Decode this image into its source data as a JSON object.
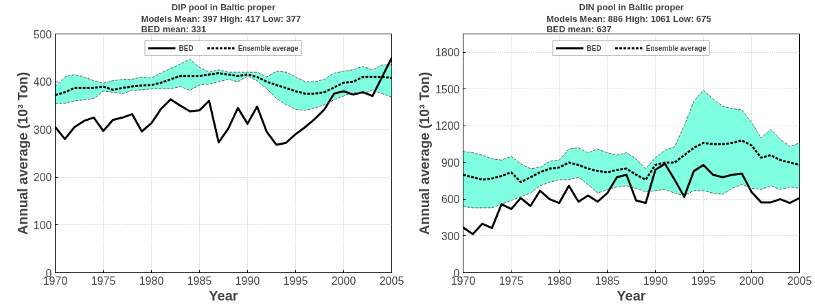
{
  "chart_data": [
    {
      "type": "line",
      "title": "DIP pool in Baltic proper",
      "subtitle": "Models Mean: 397  High: 417  Low: 377\nBED mean: 331",
      "xlabel": "Year",
      "ylabel": "Annual average (10³ Ton)",
      "x": [
        1970,
        1971,
        1972,
        1973,
        1974,
        1975,
        1976,
        1977,
        1978,
        1979,
        1980,
        1981,
        1982,
        1983,
        1984,
        1985,
        1986,
        1987,
        1988,
        1989,
        1990,
        1991,
        1992,
        1993,
        1994,
        1995,
        1996,
        1997,
        1998,
        1999,
        2000,
        2001,
        2002,
        2003,
        2004,
        2005
      ],
      "series": [
        {
          "name": "BED",
          "color": "#000000",
          "line_style": "solid",
          "values": [
            305,
            280,
            305,
            318,
            325,
            297,
            320,
            325,
            332,
            296,
            313,
            343,
            363,
            350,
            338,
            340,
            360,
            273,
            302,
            345,
            312,
            348,
            295,
            268,
            272,
            290,
            305,
            322,
            342,
            375,
            380,
            373,
            378,
            370,
            410,
            450
          ]
        },
        {
          "name": "Ensemble average",
          "color": "#000000",
          "line_style": "dashed",
          "values": [
            372,
            378,
            387,
            387,
            387,
            390,
            383,
            387,
            390,
            392,
            393,
            398,
            405,
            412,
            412,
            412,
            415,
            418,
            415,
            412,
            415,
            410,
            400,
            393,
            387,
            380,
            375,
            375,
            378,
            388,
            398,
            400,
            410,
            410,
            410,
            408
          ],
          "upper": [
            390,
            410,
            415,
            410,
            402,
            397,
            402,
            405,
            405,
            410,
            408,
            418,
            428,
            437,
            447,
            430,
            420,
            425,
            420,
            420,
            420,
            420,
            410,
            422,
            420,
            410,
            400,
            400,
            405,
            418,
            422,
            425,
            432,
            425,
            435,
            435
          ],
          "lower": [
            355,
            355,
            360,
            362,
            365,
            380,
            378,
            375,
            382,
            383,
            385,
            385,
            385,
            390,
            382,
            393,
            395,
            400,
            405,
            400,
            412,
            402,
            385,
            365,
            352,
            342,
            340,
            345,
            352,
            362,
            370,
            378,
            375,
            382,
            375,
            368
          ]
        },
        {
          "color": "#555555",
          "line_style": "dashed",
          "values": [
            390,
            410,
            415,
            410,
            402,
            397,
            402,
            405,
            405,
            410,
            408,
            418,
            428,
            437,
            447,
            430,
            420,
            425,
            420,
            420,
            420,
            420,
            410,
            422,
            420,
            410,
            400,
            400,
            405,
            418,
            422,
            425,
            432,
            425,
            435,
            435
          ]
        },
        {
          "color": "#555555",
          "line_style": "dashed",
          "values": [
            355,
            355,
            360,
            362,
            365,
            380,
            378,
            375,
            382,
            383,
            385,
            385,
            385,
            390,
            382,
            393,
            395,
            400,
            405,
            400,
            412,
            402,
            385,
            365,
            352,
            342,
            340,
            345,
            352,
            362,
            370,
            378,
            375,
            382,
            375,
            368
          ]
        }
      ],
      "xlim": [
        1970,
        2005
      ],
      "xticks": [
        1970,
        1975,
        1980,
        1985,
        1990,
        1995,
        2000,
        2005
      ],
      "ylim": [
        0,
        500
      ],
      "yticks": [
        0,
        100,
        200,
        300,
        400,
        500
      ],
      "grid": true,
      "legend": "top"
    },
    {
      "type": "line",
      "title": "DIN pool in Baltic proper",
      "subtitle": "Models Mean: 886  High: 1061  Low: 675\nBED mean: 637",
      "xlabel": "Year",
      "ylabel": "Annual average (10³ Ton)",
      "x": [
        1970,
        1971,
        1972,
        1973,
        1974,
        1975,
        1976,
        1977,
        1978,
        1979,
        1980,
        1981,
        1982,
        1983,
        1984,
        1985,
        1986,
        1987,
        1988,
        1989,
        1990,
        1991,
        1992,
        1993,
        1994,
        1995,
        1996,
        1997,
        1998,
        1999,
        2000,
        2001,
        2002,
        2003,
        2004,
        2005
      ],
      "series": [
        {
          "name": "BED",
          "color": "#000000",
          "line_style": "solid",
          "values": [
            370,
            315,
            400,
            365,
            560,
            520,
            610,
            545,
            670,
            600,
            570,
            710,
            580,
            630,
            580,
            650,
            780,
            800,
            590,
            570,
            840,
            890,
            760,
            620,
            830,
            880,
            800,
            780,
            800,
            810,
            660,
            575,
            575,
            600,
            570,
            610
          ]
        },
        {
          "name": "Ensemble average",
          "color": "#000000",
          "line_style": "dashed",
          "values": [
            800,
            780,
            760,
            770,
            790,
            820,
            740,
            780,
            820,
            850,
            860,
            900,
            880,
            850,
            830,
            820,
            840,
            850,
            800,
            760,
            880,
            900,
            900,
            960,
            1020,
            1060,
            1050,
            1050,
            1060,
            1080,
            1040,
            940,
            960,
            920,
            900,
            880
          ],
          "upper": [
            990,
            980,
            960,
            930,
            920,
            950,
            890,
            850,
            860,
            910,
            920,
            1010,
            1020,
            980,
            1010,
            980,
            960,
            980,
            930,
            850,
            940,
            1000,
            1030,
            1200,
            1400,
            1490,
            1420,
            1360,
            1340,
            1330,
            1230,
            1100,
            1170,
            1090,
            1030,
            1060
          ],
          "lower": [
            540,
            530,
            530,
            530,
            560,
            590,
            620,
            650,
            710,
            740,
            760,
            760,
            780,
            720,
            650,
            680,
            700,
            710,
            690,
            660,
            670,
            680,
            650,
            630,
            670,
            670,
            650,
            640,
            690,
            720,
            690,
            680,
            710,
            680,
            700,
            690
          ]
        },
        {
          "color": "#555555",
          "line_style": "dashed",
          "values": [
            990,
            980,
            960,
            930,
            920,
            950,
            890,
            850,
            860,
            910,
            920,
            1010,
            1020,
            980,
            1010,
            980,
            960,
            980,
            930,
            850,
            940,
            1000,
            1030,
            1200,
            1400,
            1490,
            1420,
            1360,
            1340,
            1330,
            1230,
            1100,
            1170,
            1090,
            1030,
            1060
          ]
        },
        {
          "color": "#555555",
          "line_style": "dashed",
          "values": [
            540,
            530,
            530,
            530,
            560,
            590,
            620,
            650,
            710,
            740,
            760,
            760,
            780,
            720,
            650,
            680,
            700,
            710,
            690,
            660,
            670,
            680,
            650,
            630,
            670,
            670,
            650,
            640,
            690,
            720,
            690,
            680,
            710,
            680,
            700,
            690
          ]
        }
      ],
      "xlim": [
        1970,
        2005
      ],
      "xticks": [
        1970,
        1975,
        1980,
        1985,
        1990,
        1995,
        2000,
        2005
      ],
      "ylim": [
        0,
        1950
      ],
      "yticks": [
        0,
        300,
        600,
        900,
        1200,
        1500,
        1800
      ],
      "grid": true,
      "legend": "top"
    }
  ]
}
